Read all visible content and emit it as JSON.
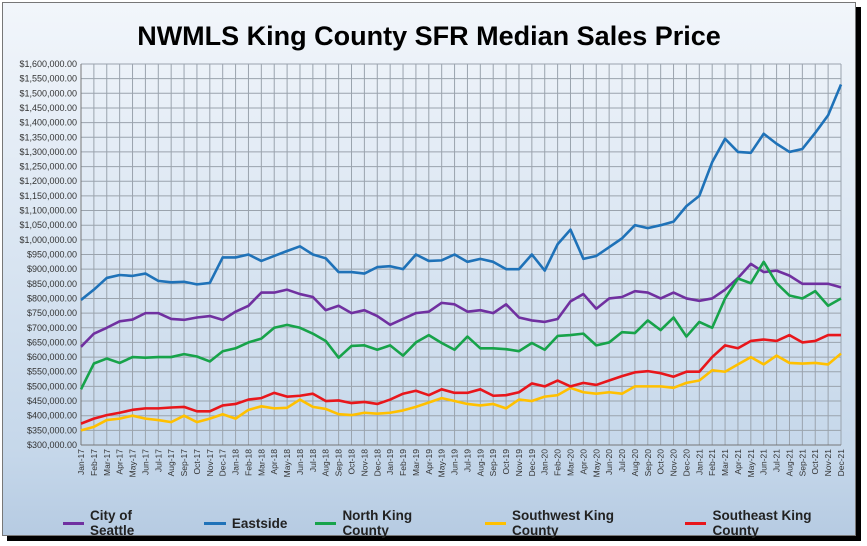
{
  "chart_data": {
    "type": "line",
    "title": "NWMLS King County SFR Median Sales Price",
    "xlabel": "",
    "ylabel": "",
    "ylim": [
      300000,
      1600000
    ],
    "ytick_step": 50000,
    "grid": true,
    "legend_placement": "bottom",
    "categories": [
      "Jan-17",
      "Feb-17",
      "Mar-17",
      "Apr-17",
      "May-17",
      "Jun-17",
      "Jul-17",
      "Aug-17",
      "Sep-17",
      "Oct-17",
      "Nov-17",
      "Dec-17",
      "Jan-18",
      "Feb-18",
      "Mar-18",
      "Apr-18",
      "May-18",
      "Jun-18",
      "Jul-18",
      "Aug-18",
      "Sep-18",
      "Oct-18",
      "Nov-18",
      "Dec-18",
      "Jan-19",
      "Feb-19",
      "Mar-19",
      "Apr-19",
      "May-19",
      "Jun-19",
      "Jul-19",
      "Aug-19",
      "Sep-19",
      "Oct-19",
      "Nov-19",
      "Dec-19",
      "Jan-20",
      "Feb-20",
      "Mar-20",
      "Apr-20",
      "May-20",
      "Jun-20",
      "Jul-20",
      "Aug-20",
      "Sep-20",
      "Oct-20",
      "Nov-20",
      "Dec-20",
      "Jan-21",
      "Feb-21",
      "Mar-21",
      "Apr-21",
      "May-21",
      "Jun-21",
      "Jul-21",
      "Aug-21",
      "Sep-21",
      "Oct-21",
      "Nov-21",
      "Dec-21"
    ],
    "series": [
      {
        "name": "City of Seattle",
        "color": "#7030a0",
        "values": [
          635000,
          680000,
          700000,
          722000,
          728000,
          750000,
          750000,
          730000,
          727000,
          735000,
          740000,
          727000,
          755000,
          775000,
          820000,
          820000,
          830000,
          815000,
          805000,
          760000,
          775000,
          750000,
          760000,
          740000,
          710000,
          730000,
          750000,
          755000,
          785000,
          780000,
          755000,
          760000,
          750000,
          780000,
          735000,
          725000,
          720000,
          730000,
          790000,
          815000,
          765000,
          800000,
          805000,
          825000,
          820000,
          800000,
          820000,
          800000,
          792000,
          800000,
          830000,
          870000,
          918000,
          890000,
          895000,
          878000,
          850000,
          850000,
          850000,
          838000
        ]
      },
      {
        "name": "Eastside",
        "color": "#1f72b8",
        "values": [
          795000,
          830000,
          870000,
          880000,
          877000,
          885000,
          860000,
          855000,
          857000,
          848000,
          853000,
          940000,
          940000,
          950000,
          928000,
          945000,
          962000,
          978000,
          950000,
          937000,
          890000,
          890000,
          885000,
          907000,
          910000,
          900000,
          950000,
          928000,
          930000,
          950000,
          925000,
          935000,
          925000,
          900000,
          900000,
          950000,
          895000,
          985000,
          1035000,
          935000,
          945000,
          975000,
          1005000,
          1050000,
          1040000,
          1050000,
          1062000,
          1115000,
          1150000,
          1265000,
          1345000,
          1300000,
          1297000,
          1362000,
          1328000,
          1300000,
          1310000,
          1365000,
          1425000,
          1530000
        ]
      },
      {
        "name": "North King County",
        "color": "#17a34a",
        "values": [
          490000,
          578000,
          595000,
          580000,
          600000,
          598000,
          600000,
          600000,
          610000,
          602000,
          585000,
          620000,
          630000,
          650000,
          663000,
          700000,
          710000,
          700000,
          680000,
          655000,
          598000,
          638000,
          640000,
          625000,
          640000,
          605000,
          650000,
          675000,
          648000,
          625000,
          670000,
          630000,
          630000,
          627000,
          620000,
          648000,
          625000,
          672000,
          675000,
          680000,
          640000,
          650000,
          685000,
          682000,
          725000,
          692000,
          735000,
          670000,
          720000,
          700000,
          800000,
          868000,
          852000,
          925000,
          852000,
          810000,
          800000,
          825000,
          775000,
          800000
        ]
      },
      {
        "name": "Southwest King County",
        "color": "#ffc000",
        "values": [
          350000,
          362000,
          385000,
          390000,
          400000,
          390000,
          385000,
          378000,
          400000,
          378000,
          390000,
          405000,
          390000,
          420000,
          432000,
          425000,
          427000,
          455000,
          430000,
          423000,
          405000,
          402000,
          410000,
          407000,
          410000,
          418000,
          430000,
          445000,
          460000,
          450000,
          440000,
          435000,
          440000,
          425000,
          455000,
          450000,
          465000,
          470000,
          495000,
          480000,
          475000,
          480000,
          475000,
          500000,
          500000,
          500000,
          495000,
          512000,
          520000,
          555000,
          550000,
          575000,
          600000,
          575000,
          605000,
          580000,
          578000,
          580000,
          575000,
          612000
        ]
      },
      {
        "name": "Southeast King County",
        "color": "#e8161b",
        "values": [
          373000,
          390000,
          402000,
          410000,
          420000,
          425000,
          425000,
          428000,
          430000,
          415000,
          415000,
          435000,
          440000,
          455000,
          460000,
          478000,
          465000,
          468000,
          475000,
          450000,
          452000,
          443000,
          447000,
          440000,
          455000,
          475000,
          485000,
          470000,
          490000,
          478000,
          478000,
          490000,
          468000,
          470000,
          480000,
          510000,
          500000,
          520000,
          500000,
          512000,
          505000,
          520000,
          535000,
          548000,
          552000,
          545000,
          533000,
          550000,
          550000,
          600000,
          640000,
          630000,
          655000,
          660000,
          655000,
          675000,
          650000,
          655000,
          675000,
          675000
        ]
      }
    ]
  }
}
